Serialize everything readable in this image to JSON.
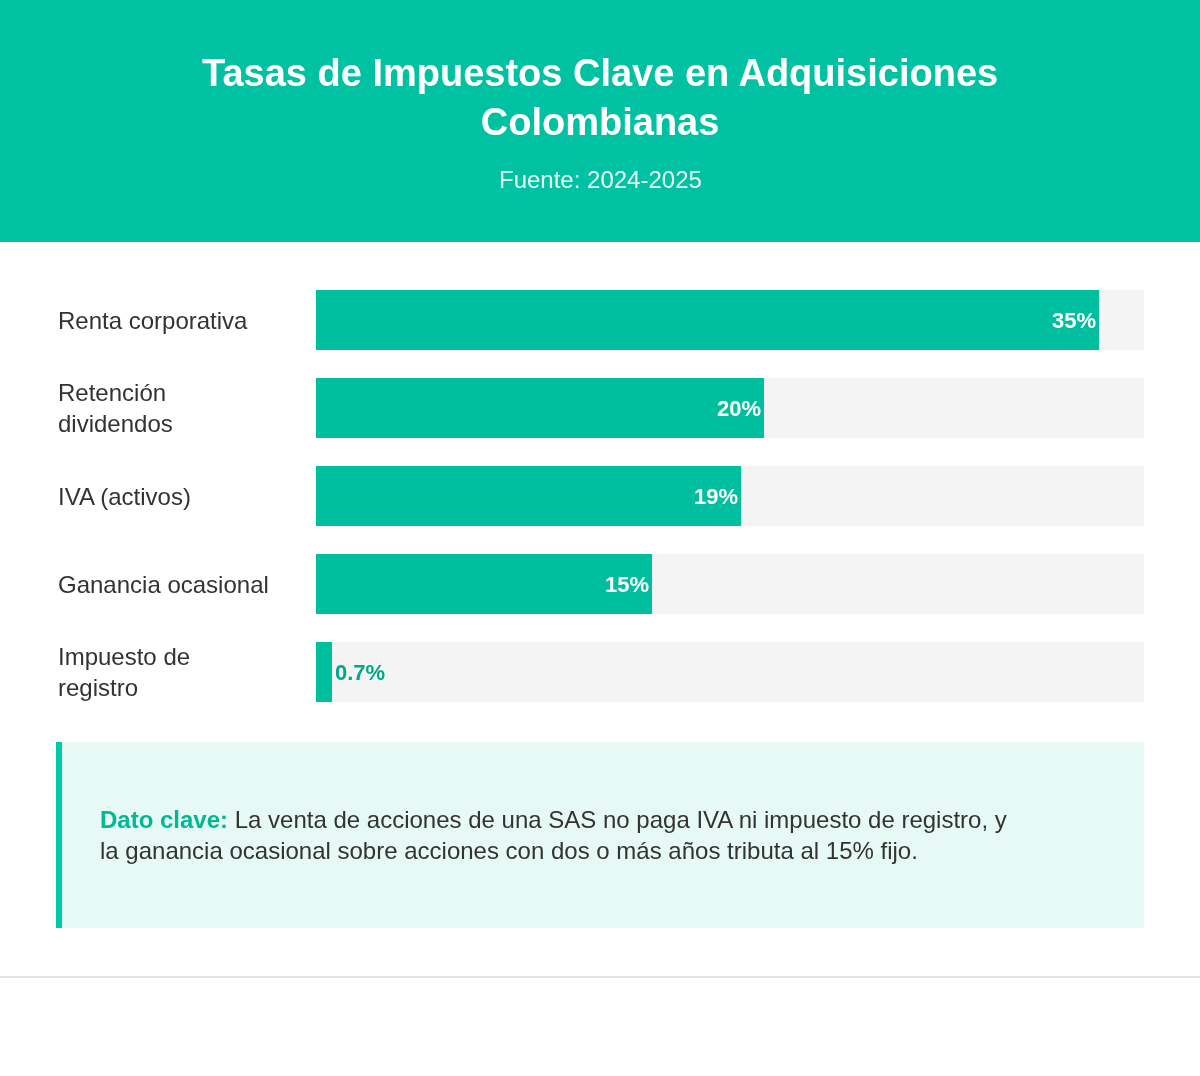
{
  "chart_data": {
    "type": "bar",
    "orientation": "horizontal",
    "title": "Tasas de Impuestos Clave en Adquisiciones Colombianas",
    "subtitle": "Fuente: 2024-2025",
    "categories": [
      "Renta corporativa",
      "Retención dividendos",
      "IVA (activos)",
      "Ganancia ocasional",
      "Impuesto de registro"
    ],
    "values": [
      35,
      20,
      19,
      15,
      0.7
    ],
    "value_labels": [
      "35%",
      "20%",
      "19%",
      "15%",
      "0.7%"
    ],
    "color": "#00bf9f",
    "xlim": [
      0,
      37
    ],
    "tick_labels": "y",
    "legend": false,
    "annotations": [
      "Dato clave: La venta de acciones de una SAS no paga IVA ni impuesto de registro, y la ganancia ocasional sobre acciones con dos o más años tributa al 15% fijo."
    ]
  }
}
